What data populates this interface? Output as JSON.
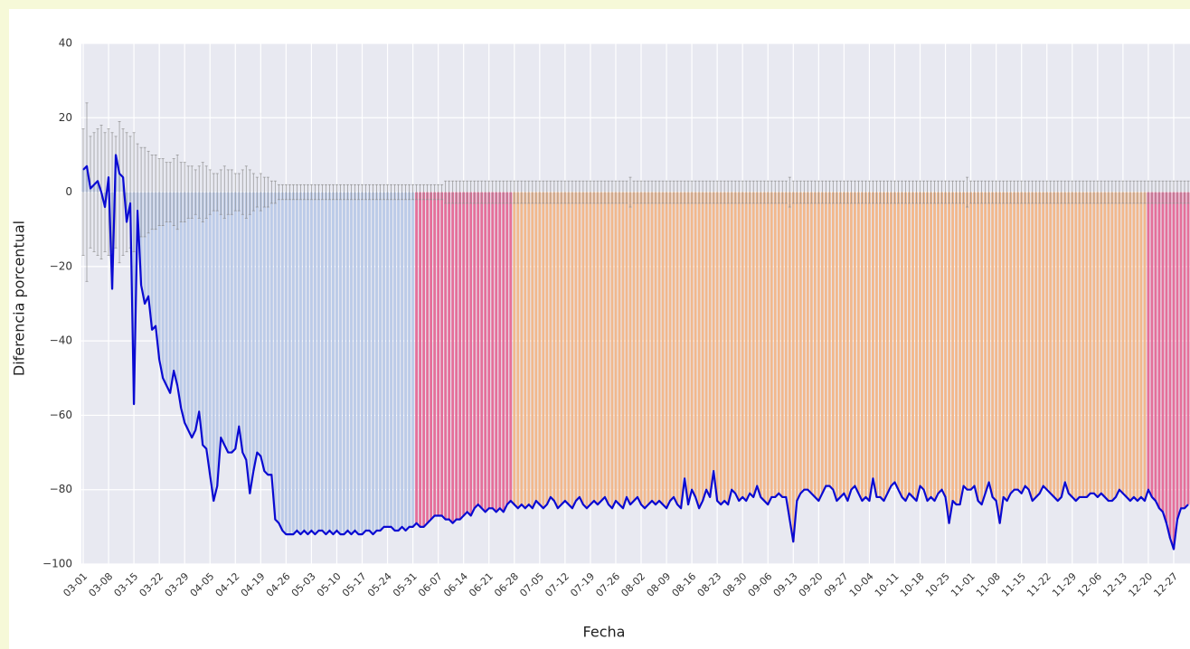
{
  "chart_data": {
    "type": "bar",
    "xlabel": "Fecha",
    "ylabel": "Diferencia porcentual",
    "ylim": [
      -100,
      40
    ],
    "yticks": [
      {
        "value": -100,
        "label": "−100"
      },
      {
        "value": -80,
        "label": "−80"
      },
      {
        "value": -60,
        "label": "−60"
      },
      {
        "value": -40,
        "label": "−40"
      },
      {
        "value": -20,
        "label": "−20"
      },
      0,
      20,
      40
    ],
    "grid": true,
    "line_color": "#0a0ad2",
    "error_color": "#8a8a8a",
    "categories": [
      "03-01",
      null,
      null,
      null,
      null,
      null,
      null,
      "03-08",
      null,
      null,
      null,
      null,
      null,
      null,
      "03-15",
      null,
      null,
      null,
      null,
      null,
      null,
      "03-22",
      null,
      null,
      null,
      null,
      null,
      null,
      "03-29",
      null,
      null,
      null,
      null,
      null,
      null,
      "04-05",
      null,
      null,
      null,
      null,
      null,
      null,
      "04-12",
      null,
      null,
      null,
      null,
      null,
      null,
      "04-19",
      null,
      null,
      null,
      null,
      null,
      null,
      "04-26",
      null,
      null,
      null,
      null,
      null,
      null,
      "05-03",
      null,
      null,
      null,
      null,
      null,
      null,
      "05-10",
      null,
      null,
      null,
      null,
      null,
      null,
      "05-17",
      null,
      null,
      null,
      null,
      null,
      null,
      "05-24",
      null,
      null,
      null,
      null,
      null,
      null,
      "05-31",
      null,
      null,
      null,
      null,
      null,
      null,
      "06-07",
      null,
      null,
      null,
      null,
      null,
      null,
      "06-14",
      null,
      null,
      null,
      null,
      null,
      null,
      "06-21",
      null,
      null,
      null,
      null,
      null,
      null,
      "06-28",
      null,
      null,
      null,
      null,
      null,
      null,
      "07-05",
      null,
      null,
      null,
      null,
      null,
      null,
      "07-12",
      null,
      null,
      null,
      null,
      null,
      null,
      "07-19",
      null,
      null,
      null,
      null,
      null,
      null,
      "07-26",
      null,
      null,
      null,
      null,
      null,
      null,
      "08-02",
      null,
      null,
      null,
      null,
      null,
      null,
      "08-09",
      null,
      null,
      null,
      null,
      null,
      null,
      "08-16",
      null,
      null,
      null,
      null,
      null,
      null,
      "08-23",
      null,
      null,
      null,
      null,
      null,
      null,
      "08-30",
      null,
      null,
      null,
      null,
      null,
      null,
      "09-06",
      null,
      null,
      null,
      null,
      null,
      null,
      "09-13",
      null,
      null,
      null,
      null,
      null,
      null,
      "09-20",
      null,
      null,
      null,
      null,
      null,
      null,
      "09-27",
      null,
      null,
      null,
      null,
      null,
      null,
      "10-04",
      null,
      null,
      null,
      null,
      null,
      null,
      "10-11",
      null,
      null,
      null,
      null,
      null,
      null,
      "10-18",
      null,
      null,
      null,
      null,
      null,
      null,
      "10-25",
      null,
      null,
      null,
      null,
      null,
      null,
      "11-01",
      null,
      null,
      null,
      null,
      null,
      null,
      "11-08",
      null,
      null,
      null,
      null,
      null,
      null,
      "11-15",
      null,
      null,
      null,
      null,
      null,
      null,
      "11-22",
      null,
      null,
      null,
      null,
      null,
      null,
      "11-29",
      null,
      null,
      null,
      null,
      null,
      null,
      "12-06",
      null,
      null,
      null,
      null,
      null,
      null,
      "12-13",
      null,
      null,
      null,
      null,
      null,
      null,
      "12-20",
      null,
      null,
      null,
      null,
      null,
      null,
      "12-27",
      null,
      null,
      null,
      null
    ],
    "values": [
      6,
      7,
      1,
      2,
      3,
      0,
      -4,
      4,
      -26,
      10,
      5,
      4,
      -8,
      -3,
      -57,
      -5,
      -25,
      -30,
      -28,
      -37,
      -36,
      -45,
      -50,
      -52,
      -54,
      -48,
      -52,
      -58,
      -62,
      -64,
      -66,
      -64,
      -59,
      -68,
      -69,
      -76,
      -83,
      -79,
      -66,
      -68,
      -70,
      -70,
      -69,
      -63,
      -70,
      -72,
      -81,
      -75,
      -70,
      -71,
      -75,
      -76,
      -76,
      -88,
      -89,
      -91,
      -92,
      -92,
      -92,
      -91,
      -92,
      -91,
      -92,
      -91,
      -92,
      -91,
      -91,
      -92,
      -91,
      -92,
      -91,
      -92,
      -92,
      -91,
      -92,
      -91,
      -92,
      -92,
      -91,
      -91,
      -92,
      -91,
      -91,
      -90,
      -90,
      -90,
      -91,
      -91,
      -90,
      -91,
      -90,
      -90,
      -89,
      -90,
      -90,
      -89,
      -88,
      -87,
      -87,
      -87,
      -88,
      -88,
      -89,
      -88,
      -88,
      -87,
      -86,
      -87,
      -85,
      -84,
      -85,
      -86,
      -85,
      -85,
      -86,
      -85,
      -86,
      -84,
      -83,
      -84,
      -85,
      -84,
      -85,
      -84,
      -85,
      -83,
      -84,
      -85,
      -84,
      -82,
      -83,
      -85,
      -84,
      -83,
      -84,
      -85,
      -83,
      -82,
      -84,
      -85,
      -84,
      -83,
      -84,
      -83,
      -82,
      -84,
      -85,
      -83,
      -84,
      -85,
      -82,
      -84,
      -83,
      -82,
      -84,
      -85,
      -84,
      -83,
      -84,
      -83,
      -84,
      -85,
      -83,
      -82,
      -84,
      -85,
      -77,
      -84,
      -80,
      -82,
      -85,
      -83,
      -80,
      -82,
      -75,
      -83,
      -84,
      -83,
      -84,
      -80,
      -81,
      -83,
      -82,
      -83,
      -81,
      -82,
      -79,
      -82,
      -83,
      -84,
      -82,
      -82,
      -81,
      -82,
      -82,
      -88,
      -94,
      -83,
      -81,
      -80,
      -80,
      -81,
      -82,
      -83,
      -81,
      -79,
      -79,
      -80,
      -83,
      -82,
      -81,
      -83,
      -80,
      -79,
      -81,
      -83,
      -82,
      -83,
      -77,
      -82,
      -82,
      -83,
      -81,
      -79,
      -78,
      -80,
      -82,
      -83,
      -81,
      -82,
      -83,
      -79,
      -80,
      -83,
      -82,
      -83,
      -81,
      -80,
      -82,
      -89,
      -83,
      -84,
      -84,
      -79,
      -80,
      -80,
      -79,
      -83,
      -84,
      -81,
      -78,
      -82,
      -83,
      -89,
      -82,
      -83,
      -81,
      -80,
      -80,
      -81,
      -79,
      -80,
      -83,
      -82,
      -81,
      -79,
      -80,
      -81,
      -82,
      -83,
      -82,
      -78,
      -81,
      -82,
      -83,
      -82,
      -82,
      -82,
      -81,
      -81,
      -82,
      -81,
      -82,
      -83,
      -83,
      -82,
      -80,
      -81,
      -82,
      -83,
      -82,
      -83,
      -82,
      -83,
      -80,
      -82,
      -83,
      -85,
      -86,
      -89,
      -93,
      -96,
      -88,
      -85,
      -85,
      -84
    ],
    "errors": [
      17,
      24,
      15,
      16,
      17,
      18,
      16,
      17,
      16,
      15,
      19,
      17,
      16,
      15,
      16,
      13,
      12,
      12,
      11,
      10,
      10,
      9,
      9,
      8,
      8,
      9,
      10,
      8,
      8,
      7,
      7,
      6,
      7,
      8,
      7,
      6,
      5,
      5,
      6,
      7,
      6,
      6,
      5,
      5,
      6,
      7,
      6,
      5,
      4,
      5,
      4,
      4,
      3,
      3,
      2,
      2,
      2,
      2,
      2,
      2,
      2,
      2,
      2,
      2,
      2,
      2,
      2,
      2,
      2,
      2,
      2,
      2,
      2,
      2,
      2,
      2,
      2,
      2,
      2,
      2,
      2,
      2,
      2,
      2,
      2,
      2,
      2,
      2,
      2,
      2,
      2,
      2,
      2,
      2,
      2,
      2,
      2,
      2,
      2,
      2,
      3,
      3,
      3,
      3,
      3,
      3,
      3,
      3,
      3,
      3,
      3,
      3,
      3,
      3,
      3,
      3,
      3,
      3,
      3,
      3,
      3,
      3,
      3,
      3,
      3,
      3,
      3,
      3,
      3,
      3,
      3,
      3,
      3,
      3,
      3,
      3,
      3,
      3,
      3,
      3,
      3,
      3,
      3,
      3,
      3,
      3,
      3,
      3,
      3,
      3,
      3,
      4,
      3,
      3,
      3,
      3,
      3,
      3,
      3,
      3,
      3,
      3,
      3,
      3,
      3,
      3,
      3,
      3,
      3,
      3,
      3,
      3,
      3,
      3,
      3,
      3,
      3,
      3,
      3,
      3,
      3,
      3,
      3,
      3,
      3,
      3,
      3,
      3,
      3,
      3,
      3,
      3,
      3,
      3,
      3,
      4,
      3,
      3,
      3,
      3,
      3,
      3,
      3,
      3,
      3,
      3,
      3,
      3,
      3,
      3,
      3,
      3,
      3,
      3,
      3,
      3,
      3,
      3,
      3,
      3,
      3,
      3,
      3,
      3,
      3,
      3,
      3,
      3,
      3,
      3,
      3,
      3,
      3,
      3,
      3,
      3,
      3,
      3,
      3,
      3,
      3,
      3,
      3,
      3,
      4,
      3,
      3,
      3,
      3,
      3,
      3,
      3,
      3,
      3,
      3,
      3,
      3,
      3,
      3,
      3,
      3,
      3,
      3,
      3,
      3,
      3,
      3,
      3,
      3,
      3,
      3,
      3,
      3,
      3,
      3,
      3,
      3,
      3,
      3,
      3,
      3,
      3,
      3,
      3,
      3,
      3,
      3,
      3,
      3,
      3,
      3,
      3,
      3,
      3,
      3,
      3,
      3,
      3,
      3,
      3,
      3,
      3,
      3,
      3,
      3,
      3
    ],
    "bar_colors": [
      "#bccbe8",
      "#bccbe8",
      "#bccbe8",
      "#bccbe8",
      "#bccbe8",
      "#bccbe8",
      "#bccbe8",
      "#bccbe8",
      "#bccbe8",
      "#bccbe8",
      "#bccbe8",
      "#bccbe8",
      "#bccbe8",
      "#bccbe8",
      "#bccbe8",
      "#bccbe8",
      "#bccbe8",
      "#bccbe8",
      "#bccbe8",
      "#bccbe8",
      "#bccbe8",
      "#bccbe8",
      "#bccbe8",
      "#bccbe8",
      "#bccbe8",
      "#bccbe8",
      "#bccbe8",
      "#bccbe8",
      "#bccbe8",
      "#bccbe8",
      "#bccbe8",
      "#bccbe8",
      "#bccbe8",
      "#bccbe8",
      "#bccbe8",
      "#bccbe8",
      "#bccbe8",
      "#bccbe8",
      "#bccbe8",
      "#bccbe8",
      "#bccbe8",
      "#bccbe8",
      "#bccbe8",
      "#bccbe8",
      "#bccbe8",
      "#bccbe8",
      "#bccbe8",
      "#bccbe8",
      "#bccbe8",
      "#bccbe8",
      "#bccbe8",
      "#bccbe8",
      "#bccbe8",
      "#bccbe8",
      "#bccbe8",
      "#bccbe8",
      "#bccbe8",
      "#bccbe8",
      "#bccbe8",
      "#bccbe8",
      "#bccbe8",
      "#bccbe8",
      "#bccbe8",
      "#bccbe8",
      "#bccbe8",
      "#bccbe8",
      "#bccbe8",
      "#bccbe8",
      "#bccbe8",
      "#bccbe8",
      "#bccbe8",
      "#bccbe8",
      "#bccbe8",
      "#bccbe8",
      "#bccbe8",
      "#bccbe8",
      "#bccbe8",
      "#bccbe8",
      "#bccbe8",
      "#bccbe8",
      "#bccbe8",
      "#bccbe8",
      "#bccbe8",
      "#bccbe8",
      "#bccbe8",
      "#bccbe8",
      "#bccbe8",
      "#bccbe8",
      "#bccbe8",
      "#bccbe8",
      "#bccbe8",
      "#bccbe8",
      "#e56f9a",
      "#e56f9a",
      "#e56f9a",
      "#e56f9a",
      "#e56f9a",
      "#e56f9a",
      "#e56f9a",
      "#e56f9a",
      "#e56f9a",
      "#e56f9a",
      "#e56f9a",
      "#e56f9a",
      "#e56f9a",
      "#e56f9a",
      "#e56f9a",
      "#e56f9a",
      "#e56f9a",
      "#e56f9a",
      "#e56f9a",
      "#e56f9a",
      "#e56f9a",
      "#e56f9a",
      "#e56f9a",
      "#e56f9a",
      "#e56f9a",
      "#e56f9a",
      "#e56f9a",
      "#f2b88c",
      "#f2b88c",
      "#f2b88c",
      "#f2b88c",
      "#f2b88c",
      "#f2b88c",
      "#f2b88c",
      "#f2b88c",
      "#f2b88c",
      "#f2b88c",
      "#f2b88c",
      "#f2b88c",
      "#f2b88c",
      "#f2b88c",
      "#f2b88c",
      "#f2b88c",
      "#f2b88c",
      "#f2b88c",
      "#f2b88c",
      "#f2b88c",
      "#f2b88c",
      "#f2b88c",
      "#f2b88c",
      "#f2b88c",
      "#f2b88c",
      "#f2b88c",
      "#f2b88c",
      "#f2b88c",
      "#f2b88c",
      "#f2b88c",
      "#f2b88c",
      "#f2b88c",
      "#f2b88c",
      "#f2b88c",
      "#f2b88c",
      "#f2b88c",
      "#f2b88c",
      "#f2b88c",
      "#f2b88c",
      "#f2b88c",
      "#f2b88c",
      "#f2b88c",
      "#f2b88c",
      "#f2b88c",
      "#f2b88c",
      "#f2b88c",
      "#f2b88c",
      "#f2b88c",
      "#f2b88c",
      "#f2b88c",
      "#f2b88c",
      "#f2b88c",
      "#f2b88c",
      "#f2b88c",
      "#f2b88c",
      "#f2b88c",
      "#f2b88c",
      "#f2b88c",
      "#f2b88c",
      "#f2b88c",
      "#f2b88c",
      "#f2b88c",
      "#f2b88c",
      "#f2b88c",
      "#f2b88c",
      "#f2b88c",
      "#f2b88c",
      "#f2b88c",
      "#f2b88c",
      "#f2b88c",
      "#f2b88c",
      "#f2b88c",
      "#f2b88c",
      "#f2b88c",
      "#f2b88c",
      "#f2b88c",
      "#f2b88c",
      "#f2b88c",
      "#f2b88c",
      "#f2b88c",
      "#f2b88c",
      "#f2b88c",
      "#f2b88c",
      "#f2b88c",
      "#f2b88c",
      "#f2b88c",
      "#f2b88c",
      "#f2b88c",
      "#f2b88c",
      "#f2b88c",
      "#f2b88c",
      "#f2b88c",
      "#f2b88c",
      "#f2b88c",
      "#f2b88c",
      "#f2b88c",
      "#f2b88c",
      "#f2b88c",
      "#f2b88c",
      "#f2b88c",
      "#f2b88c",
      "#f2b88c",
      "#f2b88c",
      "#f2b88c",
      "#f2b88c",
      "#f2b88c",
      "#f2b88c",
      "#f2b88c",
      "#f2b88c",
      "#f2b88c",
      "#f2b88c",
      "#f2b88c",
      "#f2b88c",
      "#f2b88c",
      "#f2b88c",
      "#f2b88c",
      "#f2b88c",
      "#f2b88c",
      "#f2b88c",
      "#f2b88c",
      "#f2b88c",
      "#f2b88c",
      "#f2b88c",
      "#f2b88c",
      "#f2b88c",
      "#f2b88c",
      "#f2b88c",
      "#f2b88c",
      "#f2b88c",
      "#f2b88c",
      "#f2b88c",
      "#f2b88c",
      "#f2b88c",
      "#f2b88c",
      "#f2b88c",
      "#f2b88c",
      "#f2b88c",
      "#f2b88c",
      "#f2b88c",
      "#f2b88c",
      "#f2b88c",
      "#f2b88c",
      "#f2b88c",
      "#f2b88c",
      "#f2b88c",
      "#f2b88c",
      "#f2b88c",
      "#f2b88c",
      "#f2b88c",
      "#f2b88c",
      "#f2b88c",
      "#f2b88c",
      "#f2b88c",
      "#f2b88c",
      "#f2b88c",
      "#f2b88c",
      "#f2b88c",
      "#f2b88c",
      "#f2b88c",
      "#f2b88c",
      "#f2b88c",
      "#f2b88c",
      "#f2b88c",
      "#f2b88c",
      "#f2b88c",
      "#f2b88c",
      "#f2b88c",
      "#f2b88c",
      "#f2b88c",
      "#f2b88c",
      "#f2b88c",
      "#f2b88c",
      "#f2b88c",
      "#f2b88c",
      "#f2b88c",
      "#e56f9a",
      "#e56f9a",
      "#e56f9a",
      "#e56f9a",
      "#e56f9a",
      "#e56f9a",
      "#e56f9a",
      "#e56f9a",
      "#e56f9a",
      "#e56f9a",
      "#e56f9a",
      "#e56f9a"
    ]
  }
}
